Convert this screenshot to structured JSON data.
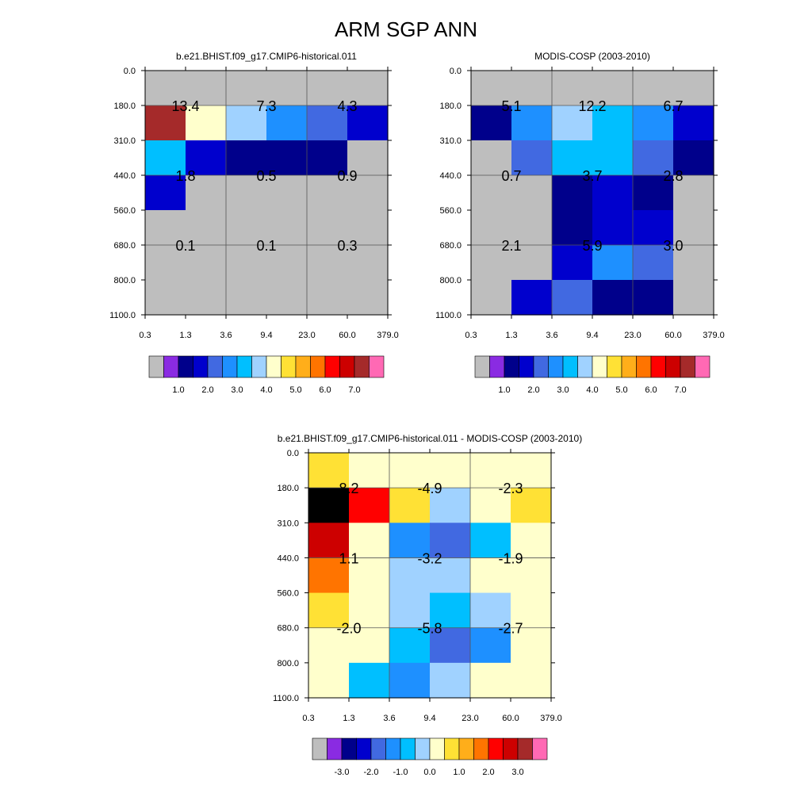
{
  "page": {
    "title": "ARM SGP ANN"
  },
  "palette": {
    "missing": "#bebebe",
    "sequential": [
      "#8a2be2",
      "#00008b",
      "#0000cd",
      "#4169e1",
      "#1e90ff",
      "#00bfff",
      "#a0d2ff",
      "#ffffcc",
      "#ffe135",
      "#ffae1a",
      "#ff7400",
      "#ff0000",
      "#cd0000",
      "#a52a2a",
      "#ff69b4"
    ],
    "difference": [
      "#8a2be2",
      "#00008b",
      "#0000cd",
      "#4169e1",
      "#1e90ff",
      "#00bfff",
      "#a0d2ff",
      "#ffffcc",
      "#ffe135",
      "#ffae1a",
      "#ff7400",
      "#ff0000",
      "#cd0000",
      "#a52a2a",
      "#ff69b4"
    ]
  },
  "chart_data": [
    {
      "type": "heatmap",
      "title": "b.e21.BHIST.f09_g17.CMIP6-historical.011",
      "x_tick_labels": [
        "0.3",
        "1.3",
        "3.6",
        "9.4",
        "23.0",
        "60.0",
        "379.0"
      ],
      "y_tick_labels": [
        "0.0",
        "180.0",
        "310.0",
        "440.0",
        "560.0",
        "680.0",
        "800.0",
        "1100.0"
      ],
      "cells": [
        [
          -1,
          -1,
          -1,
          -1,
          -1,
          -1
        ],
        [
          13,
          7,
          6,
          4,
          3,
          2
        ],
        [
          5,
          2,
          1,
          1,
          1,
          -1
        ],
        [
          2,
          -1,
          -1,
          -1,
          -1,
          -1
        ],
        [
          -1,
          -1,
          -1,
          -1,
          -1,
          -1
        ],
        [
          -1,
          -1,
          -1,
          -1,
          -1,
          -1
        ],
        [
          -1,
          -1,
          -1,
          -1,
          -1,
          -1
        ]
      ],
      "block_labels": [
        {
          "col": 0,
          "row": 0,
          "text": "13.4"
        },
        {
          "col": 1,
          "row": 0,
          "text": "7.3"
        },
        {
          "col": 2,
          "row": 0,
          "text": "4.3"
        },
        {
          "col": 0,
          "row": 1,
          "text": "1.8"
        },
        {
          "col": 1,
          "row": 1,
          "text": "0.5"
        },
        {
          "col": 2,
          "row": 1,
          "text": "0.9"
        },
        {
          "col": 0,
          "row": 2,
          "text": "0.1"
        },
        {
          "col": 1,
          "row": 2,
          "text": "0.1"
        },
        {
          "col": 2,
          "row": 2,
          "text": "0.3"
        }
      ],
      "colorbar": {
        "palette": "sequential",
        "label_values": [
          "1.0",
          "2.0",
          "3.0",
          "4.0",
          "5.0",
          "6.0",
          "7.0"
        ]
      }
    },
    {
      "type": "heatmap",
      "title": "MODIS-COSP (2003-2010)",
      "x_tick_labels": [
        "0.3",
        "1.3",
        "3.6",
        "9.4",
        "23.0",
        "60.0",
        "379.0"
      ],
      "y_tick_labels": [
        "0.0",
        "180.0",
        "310.0",
        "440.0",
        "560.0",
        "680.0",
        "800.0",
        "1100.0"
      ],
      "cells": [
        [
          -1,
          -1,
          -1,
          -1,
          -1,
          -1
        ],
        [
          1,
          4,
          6,
          5,
          4,
          2
        ],
        [
          -1,
          3,
          5,
          5,
          3,
          1
        ],
        [
          -1,
          -1,
          1,
          2,
          1,
          -1
        ],
        [
          -1,
          -1,
          1,
          2,
          2,
          -1
        ],
        [
          -1,
          -1,
          2,
          4,
          3,
          -1
        ],
        [
          -1,
          2,
          3,
          1,
          1,
          -1
        ]
      ],
      "block_labels": [
        {
          "col": 0,
          "row": 0,
          "text": "5.1"
        },
        {
          "col": 1,
          "row": 0,
          "text": "12.2"
        },
        {
          "col": 2,
          "row": 0,
          "text": "6.7"
        },
        {
          "col": 0,
          "row": 1,
          "text": "0.7"
        },
        {
          "col": 1,
          "row": 1,
          "text": "3.7"
        },
        {
          "col": 2,
          "row": 1,
          "text": "2.8"
        },
        {
          "col": 0,
          "row": 2,
          "text": "2.1"
        },
        {
          "col": 1,
          "row": 2,
          "text": "5.9"
        },
        {
          "col": 2,
          "row": 2,
          "text": "3.0"
        }
      ],
      "colorbar": {
        "palette": "sequential",
        "label_values": [
          "1.0",
          "2.0",
          "3.0",
          "4.0",
          "5.0",
          "6.0",
          "7.0"
        ]
      }
    },
    {
      "type": "heatmap",
      "title": "b.e21.BHIST.f09_g17.CMIP6-historical.011 - MODIS-COSP (2003-2010)",
      "x_tick_labels": [
        "0.3",
        "1.3",
        "3.6",
        "9.4",
        "23.0",
        "60.0",
        "379.0"
      ],
      "y_tick_labels": [
        "0.0",
        "180.0",
        "310.0",
        "440.0",
        "560.0",
        "680.0",
        "800.0",
        "1100.0"
      ],
      "cells": [
        [
          8,
          7,
          7,
          7,
          7,
          7
        ],
        [
          15,
          11,
          8,
          6,
          7,
          8
        ],
        [
          12,
          7,
          4,
          3,
          5,
          7
        ],
        [
          10,
          7,
          6,
          6,
          7,
          7
        ],
        [
          8,
          7,
          6,
          5,
          6,
          7
        ],
        [
          7,
          7,
          5,
          3,
          4,
          7
        ],
        [
          7,
          5,
          4,
          6,
          7,
          7
        ]
      ],
      "block_labels": [
        {
          "col": 0,
          "row": 0,
          "text": "8.2"
        },
        {
          "col": 1,
          "row": 0,
          "text": "-4.9"
        },
        {
          "col": 2,
          "row": 0,
          "text": "-2.3"
        },
        {
          "col": 0,
          "row": 1,
          "text": "1.1"
        },
        {
          "col": 1,
          "row": 1,
          "text": "-3.2"
        },
        {
          "col": 2,
          "row": 1,
          "text": "-1.9"
        },
        {
          "col": 0,
          "row": 2,
          "text": "-2.0"
        },
        {
          "col": 1,
          "row": 2,
          "text": "-5.8"
        },
        {
          "col": 2,
          "row": 2,
          "text": "-2.7"
        }
      ],
      "colorbar": {
        "palette": "difference",
        "label_values": [
          "-3.0",
          "-2.0",
          "-1.0",
          "0.0",
          "1.0",
          "2.0",
          "3.0"
        ]
      }
    }
  ]
}
